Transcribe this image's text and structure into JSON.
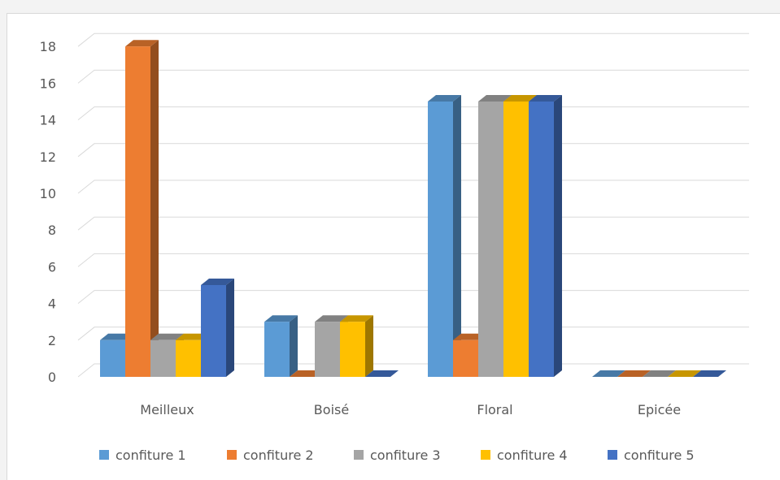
{
  "chart_data": {
    "type": "bar",
    "categories": [
      "Meilleux",
      "Boisé",
      "Floral",
      "Epicée"
    ],
    "series": [
      {
        "name": "confiture 1",
        "values": [
          2,
          3,
          15,
          0
        ],
        "color": "#5b9bd5"
      },
      {
        "name": "confiture 2",
        "values": [
          18,
          0,
          2,
          0
        ],
        "color": "#ed7d31"
      },
      {
        "name": "confiture 3",
        "values": [
          2,
          3,
          15,
          0
        ],
        "color": "#a5a5a5"
      },
      {
        "name": "confiture 4",
        "values": [
          2,
          3,
          15,
          0
        ],
        "color": "#ffc000"
      },
      {
        "name": "confiture 5",
        "values": [
          5,
          0,
          15,
          0
        ],
        "color": "#4472c4"
      }
    ],
    "yticks": [
      "0",
      "2",
      "4",
      "6",
      "8",
      "10",
      "12",
      "14",
      "16",
      "18"
    ],
    "ylim": [
      0,
      18
    ],
    "grid": true,
    "legend_position": "bottom",
    "style": "3d-clustered-column"
  }
}
